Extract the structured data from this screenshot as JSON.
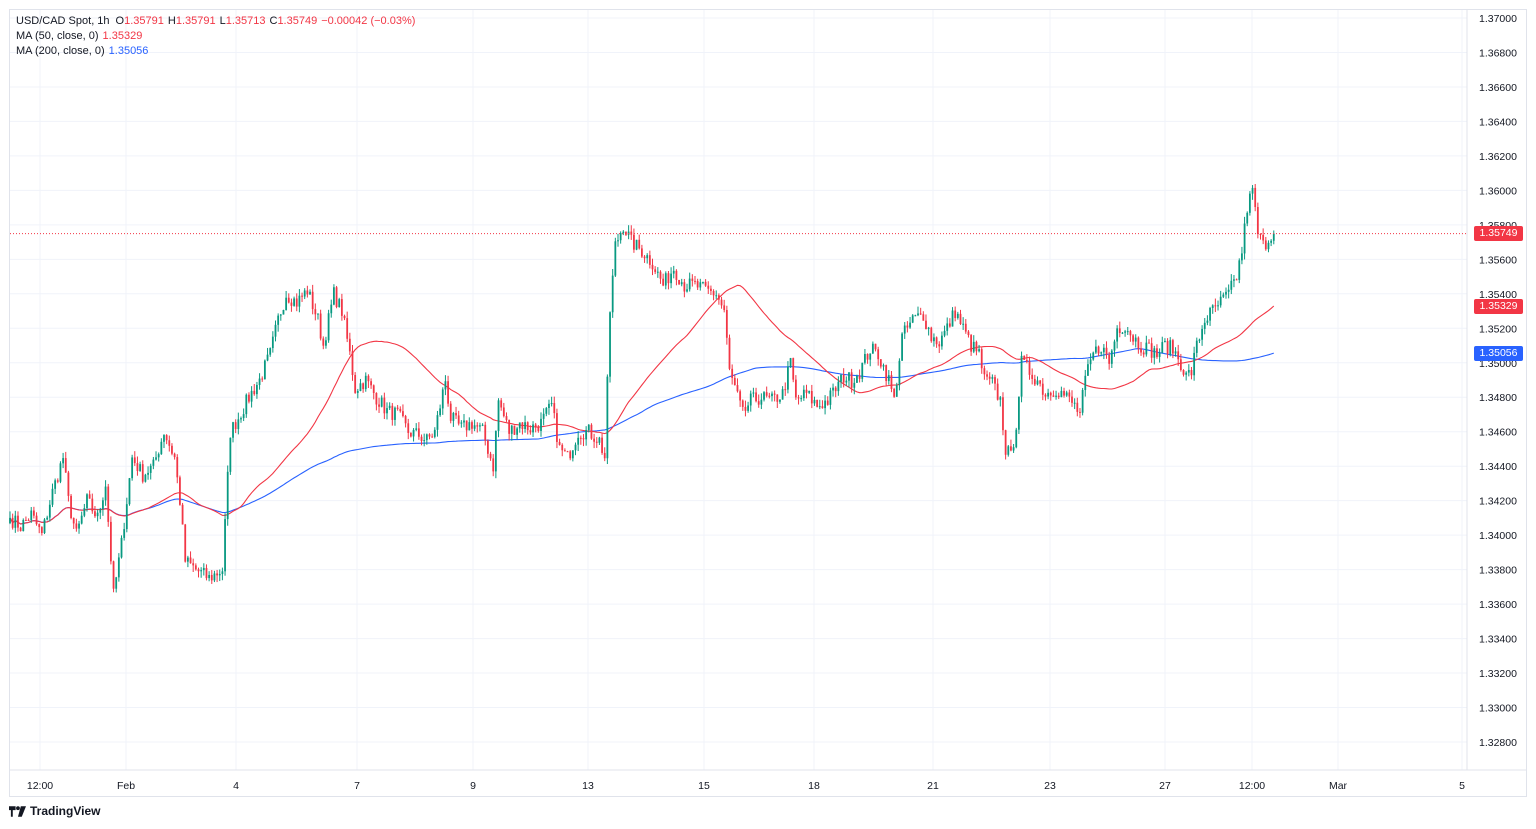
{
  "legend": {
    "symbol": "USD/CAD Spot, 1h",
    "open_label": "O",
    "open": "1.35791",
    "high_label": "H",
    "high": "1.35791",
    "low_label": "L",
    "low": "1.35713",
    "close_label": "C",
    "close": "1.35749",
    "change": "−0.00042 (−0.03%)",
    "ma50_label": "MA (50, close, 0)",
    "ma50_value": "1.35329",
    "ma200_label": "MA (200, close, 0)",
    "ma200_value": "1.35056"
  },
  "branding": {
    "name": "TradingView"
  },
  "colors": {
    "up": "#089981",
    "down": "#f23645",
    "ma50": "#f23645",
    "ma200": "#2962ff",
    "grid": "#f0f3fa",
    "text": "#131722"
  },
  "chart_data": {
    "type": "candlestick",
    "timeframe": "1h",
    "y_axis": {
      "ticks": [
        "1.37000",
        "1.36800",
        "1.36600",
        "1.36400",
        "1.36200",
        "1.36000",
        "1.35800",
        "1.35600",
        "1.35400",
        "1.35200",
        "1.35000",
        "1.34800",
        "1.34600",
        "1.34400",
        "1.34200",
        "1.34000",
        "1.33800",
        "1.33600",
        "1.33400",
        "1.33200",
        "1.33000",
        "1.32800"
      ],
      "range": [
        1.327,
        1.371
      ]
    },
    "x_axis": {
      "ticks": [
        "12:00",
        "Feb",
        "4",
        "7",
        "9",
        "13",
        "15",
        "18",
        "21",
        "23",
        "27",
        "12:00",
        "Mar",
        "5"
      ]
    },
    "price_labels": [
      {
        "name": "last",
        "value": "1.35749",
        "num": 1.35749,
        "color": "#f23645"
      },
      {
        "name": "ma50",
        "value": "1.35329",
        "num": 1.35329,
        "color": "#f23645"
      },
      {
        "name": "ma200",
        "value": "1.35056",
        "num": 1.35056,
        "color": "#2962ff"
      }
    ],
    "closes_anchors": [
      [
        0,
        1.341
      ],
      [
        4,
        1.3405
      ],
      [
        8,
        1.3412
      ],
      [
        12,
        1.34
      ],
      [
        16,
        1.3425
      ],
      [
        20,
        1.3445
      ],
      [
        22,
        1.342
      ],
      [
        25,
        1.34
      ],
      [
        29,
        1.342
      ],
      [
        33,
        1.341
      ],
      [
        36,
        1.343
      ],
      [
        39,
        1.3365
      ],
      [
        42,
        1.3395
      ],
      [
        46,
        1.3445
      ],
      [
        50,
        1.3435
      ],
      [
        54,
        1.344
      ],
      [
        58,
        1.346
      ],
      [
        62,
        1.3445
      ],
      [
        64,
        1.342
      ],
      [
        66,
        1.3385
      ],
      [
        70,
        1.338
      ],
      [
        75,
        1.3375
      ],
      [
        80,
        1.338
      ],
      [
        83,
        1.346
      ],
      [
        86,
        1.3468
      ],
      [
        90,
        1.348
      ],
      [
        94,
        1.349
      ],
      [
        98,
        1.3505
      ],
      [
        101,
        1.3525
      ],
      [
        104,
        1.354
      ],
      [
        108,
        1.3535
      ],
      [
        112,
        1.3542
      ],
      [
        116,
        1.3525
      ],
      [
        118,
        1.351
      ],
      [
        122,
        1.354
      ],
      [
        125,
        1.353
      ],
      [
        128,
        1.3505
      ],
      [
        130,
        1.3485
      ],
      [
        134,
        1.349
      ],
      [
        138,
        1.348
      ],
      [
        142,
        1.3472
      ],
      [
        146,
        1.347
      ],
      [
        150,
        1.346
      ],
      [
        154,
        1.3458
      ],
      [
        157,
        1.3455
      ],
      [
        160,
        1.346
      ],
      [
        164,
        1.349
      ],
      [
        166,
        1.3468
      ],
      [
        170,
        1.3462
      ],
      [
        174,
        1.3465
      ],
      [
        178,
        1.346
      ],
      [
        180,
        1.345
      ],
      [
        182,
        1.344
      ],
      [
        184,
        1.3478
      ],
      [
        188,
        1.346
      ],
      [
        192,
        1.3465
      ],
      [
        196,
        1.3462
      ],
      [
        200,
        1.3465
      ],
      [
        204,
        1.3475
      ],
      [
        207,
        1.345
      ],
      [
        210,
        1.3445
      ],
      [
        214,
        1.346
      ],
      [
        218,
        1.346
      ],
      [
        222,
        1.3455
      ],
      [
        224,
        1.3445
      ],
      [
        226,
        1.353
      ],
      [
        228,
        1.3568
      ],
      [
        231,
        1.358
      ],
      [
        234,
        1.357
      ],
      [
        238,
        1.3565
      ],
      [
        242,
        1.3558
      ],
      [
        246,
        1.3545
      ],
      [
        250,
        1.3555
      ],
      [
        254,
        1.3545
      ],
      [
        258,
        1.3545
      ],
      [
        262,
        1.3542
      ],
      [
        266,
        1.354
      ],
      [
        269,
        1.353
      ],
      [
        271,
        1.3495
      ],
      [
        274,
        1.348
      ],
      [
        276,
        1.347
      ],
      [
        279,
        1.3478
      ],
      [
        283,
        1.348
      ],
      [
        287,
        1.3478
      ],
      [
        291,
        1.3482
      ],
      [
        294,
        1.35
      ],
      [
        296,
        1.3478
      ],
      [
        300,
        1.3482
      ],
      [
        304,
        1.3475
      ],
      [
        308,
        1.3478
      ],
      [
        311,
        1.3485
      ],
      [
        314,
        1.3492
      ],
      [
        317,
        1.349
      ],
      [
        320,
        1.3495
      ],
      [
        324,
        1.3508
      ],
      [
        327,
        1.3505
      ],
      [
        331,
        1.349
      ],
      [
        333,
        1.3478
      ],
      [
        336,
        1.3515
      ],
      [
        340,
        1.3525
      ],
      [
        344,
        1.3528
      ],
      [
        347,
        1.3515
      ],
      [
        350,
        1.3512
      ],
      [
        353,
        1.352
      ],
      [
        356,
        1.353
      ],
      [
        359,
        1.352
      ],
      [
        362,
        1.351
      ],
      [
        365,
        1.3505
      ],
      [
        367,
        1.349
      ],
      [
        370,
        1.3488
      ],
      [
        373,
        1.3478
      ],
      [
        375,
        1.345
      ],
      [
        377,
        1.3445
      ],
      [
        379,
        1.3465
      ],
      [
        381,
        1.35
      ],
      [
        384,
        1.3495
      ],
      [
        387,
        1.349
      ],
      [
        390,
        1.3482
      ],
      [
        394,
        1.3485
      ],
      [
        398,
        1.348
      ],
      [
        401,
        1.3475
      ],
      [
        403,
        1.347
      ],
      [
        405,
        1.349
      ],
      [
        408,
        1.3505
      ],
      [
        411,
        1.351
      ],
      [
        414,
        1.35
      ],
      [
        417,
        1.352
      ],
      [
        420,
        1.3522
      ],
      [
        423,
        1.3515
      ],
      [
        426,
        1.351
      ],
      [
        429,
        1.3508
      ],
      [
        432,
        1.3505
      ],
      [
        435,
        1.351
      ],
      [
        438,
        1.3508
      ],
      [
        441,
        1.35
      ],
      [
        443,
        1.3492
      ],
      [
        445,
        1.3495
      ],
      [
        447,
        1.351
      ],
      [
        450,
        1.3525
      ],
      [
        453,
        1.353
      ],
      [
        456,
        1.3535
      ],
      [
        459,
        1.354
      ],
      [
        462,
        1.355
      ],
      [
        464,
        1.3565
      ],
      [
        466,
        1.359
      ],
      [
        468,
        1.36
      ],
      [
        470,
        1.3575
      ],
      [
        472,
        1.3568
      ],
      [
        474,
        1.3572
      ],
      [
        476,
        1.3575
      ]
    ]
  }
}
